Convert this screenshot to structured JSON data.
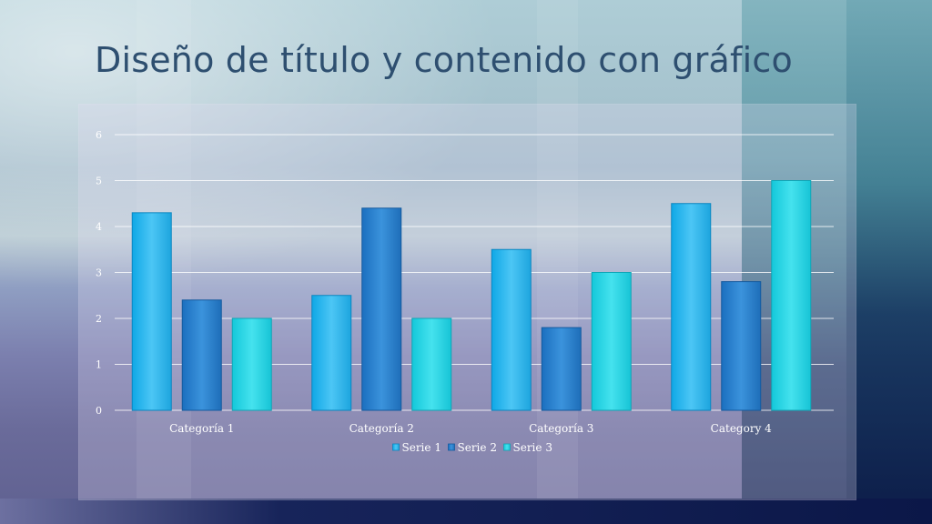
{
  "slide": {
    "title": "Diseño de título y contenido con gráfico"
  },
  "colors": {
    "serie1": "#2cb6ef",
    "serie2": "#2b84d1",
    "serie3": "#27d7e6",
    "title": "#2e4f70",
    "axis_text": "#ffffff",
    "gridline": "#ffffff"
  },
  "chart_data": {
    "type": "bar",
    "title": "",
    "xlabel": "",
    "ylabel": "",
    "categories": [
      "Categoría 1",
      "Categoría 2",
      "Categoría 3",
      "Category 4"
    ],
    "series": [
      {
        "name": "Serie 1",
        "values": [
          4.3,
          2.5,
          3.5,
          4.5
        ]
      },
      {
        "name": "Serie 2",
        "values": [
          2.4,
          4.4,
          1.8,
          2.8
        ]
      },
      {
        "name": "Serie 3",
        "values": [
          2,
          2,
          3,
          5
        ]
      }
    ],
    "ylim": [
      0,
      6
    ],
    "yticks": [
      "0",
      "1",
      "2",
      "3",
      "4",
      "5",
      "6"
    ],
    "grid": true,
    "legend_position": "bottom"
  }
}
